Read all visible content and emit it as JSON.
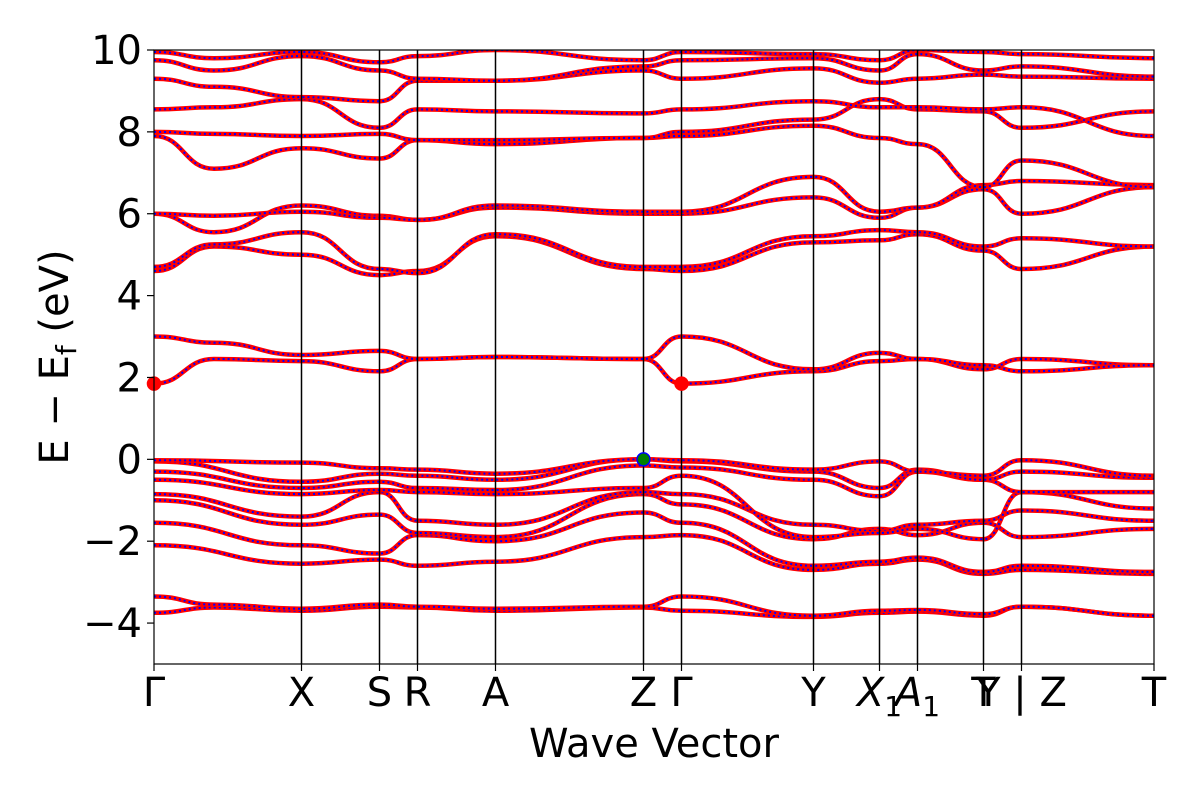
{
  "chart_data": {
    "type": "line",
    "title": "",
    "xlabel": "Wave Vector",
    "ylabel": {
      "main": "E − E",
      "sub": "f",
      "unit": " (eV)"
    },
    "ylim": [
      -5,
      10
    ],
    "yticks": [
      {
        "value": -4,
        "label": "−4"
      },
      {
        "value": -2,
        "label": "−2"
      },
      {
        "value": 0,
        "label": "0"
      },
      {
        "value": 2,
        "label": "2"
      },
      {
        "value": 4,
        "label": "4"
      },
      {
        "value": 6,
        "label": "6"
      },
      {
        "value": 8,
        "label": "8"
      },
      {
        "value": 10,
        "label": "10"
      }
    ],
    "grid": false,
    "legend": "none",
    "kpoint_breaks": [
      0,
      0.1475,
      0.2255,
      0.2635,
      0.3415,
      0.4895,
      0.5275,
      0.6595,
      0.7255,
      0.7635,
      0.8295,
      0.8675,
      1.0
    ],
    "xticks": [
      {
        "pos": 0,
        "label": "Γ",
        "sub": ""
      },
      {
        "pos": 0.1475,
        "label": "X",
        "sub": ""
      },
      {
        "pos": 0.2255,
        "label": "S",
        "sub": ""
      },
      {
        "pos": 0.2635,
        "label": "R",
        "sub": ""
      },
      {
        "pos": 0.3415,
        "label": "A",
        "sub": ""
      },
      {
        "pos": 0.4895,
        "label": "Z",
        "sub": ""
      },
      {
        "pos": 0.5275,
        "label": "Γ",
        "sub": ""
      },
      {
        "pos": 0.6595,
        "label": "Y",
        "sub": ""
      },
      {
        "pos": 0.7255,
        "label": "X",
        "sub": "1",
        "italic": true
      },
      {
        "pos": 0.7635,
        "label": "A",
        "sub": "1",
        "italic": true
      },
      {
        "pos": 0.8295,
        "label": "T",
        "sub": ""
      },
      {
        "pos": 0.8675,
        "label": "Y | Z",
        "sub": ""
      },
      {
        "pos": 1.0,
        "label": "T",
        "sub": ""
      }
    ],
    "colors": {
      "spin_up": "#ff0000",
      "spin_down": "#0000ff",
      "vbm": "#008000",
      "cbm": "#ff0000"
    },
    "bands": [
      {
        "name": "",
        "x": [
          0,
          0.06,
          0.1475,
          0.2255,
          0.2635,
          0.3415,
          0.4895,
          0.5275,
          0.6595,
          0.7255,
          0.7635,
          0.8295,
          0.8675,
          1.0
        ],
        "y": [
          -3.75,
          -3.62,
          -3.7,
          -3.6,
          -3.62,
          -3.7,
          -3.62,
          -3.7,
          -3.85,
          -3.75,
          -3.72,
          -3.82,
          -3.6,
          -3.82
        ]
      },
      {
        "name": "",
        "x": [
          0,
          0.06,
          0.1475,
          0.2255,
          0.2635,
          0.3415,
          0.4895,
          0.5275,
          0.6595,
          0.7255,
          0.7635,
          0.8295,
          0.8675,
          1.0
        ],
        "y": [
          -3.35,
          -3.55,
          -3.65,
          -3.55,
          -3.6,
          -3.65,
          -3.6,
          -3.35,
          -3.82,
          -3.7,
          -3.68,
          -3.78,
          -3.6,
          -3.82
        ]
      },
      {
        "name": "",
        "x": [
          0,
          0.1475,
          0.2255,
          0.2635,
          0.3415,
          0.4895,
          0.5275,
          0.6595,
          0.7255,
          0.7635,
          0.8295,
          0.8675,
          1.0
        ],
        "y": [
          -2.1,
          -2.55,
          -2.45,
          -2.6,
          -2.5,
          -1.9,
          -1.85,
          -2.7,
          -2.55,
          -2.45,
          -2.8,
          -2.7,
          -2.8
        ]
      },
      {
        "name": "",
        "x": [
          0,
          0.1475,
          0.2255,
          0.2635,
          0.3415,
          0.4895,
          0.5275,
          0.6595,
          0.7255,
          0.7635,
          0.8295,
          0.8675,
          1.0
        ],
        "y": [
          -1.55,
          -2.1,
          -2.3,
          -1.85,
          -2.0,
          -1.3,
          -1.55,
          -2.6,
          -2.5,
          -2.4,
          -2.75,
          -2.6,
          -2.75
        ]
      },
      {
        "name": "",
        "x": [
          0,
          0.1475,
          0.2255,
          0.2635,
          0.3415,
          0.4895,
          0.5275,
          0.6595,
          0.7255,
          0.7635,
          0.8295,
          0.8675,
          1.0
        ],
        "y": [
          -1.0,
          -1.6,
          -1.35,
          -1.8,
          -1.9,
          -0.85,
          -1.1,
          -1.95,
          -1.7,
          -1.85,
          -1.55,
          -1.9,
          -1.7
        ]
      },
      {
        "name": "",
        "x": [
          0,
          0.1475,
          0.2255,
          0.2635,
          0.3415,
          0.4895,
          0.5275,
          0.6595,
          0.7255,
          0.7635,
          0.8295,
          0.8675,
          1.0
        ],
        "y": [
          -0.85,
          -1.4,
          -0.8,
          -1.5,
          -1.6,
          -0.8,
          -0.85,
          -1.6,
          -1.75,
          -1.6,
          -1.5,
          -1.25,
          -1.5
        ]
      },
      {
        "name": "",
        "x": [
          0,
          0.1475,
          0.2255,
          0.2635,
          0.3415,
          0.4895,
          0.5275,
          0.6595,
          0.7255,
          0.7635,
          0.8295,
          0.8675,
          1.0
        ],
        "y": [
          -0.5,
          -0.85,
          -0.75,
          -0.8,
          -0.85,
          -0.7,
          -0.4,
          -1.9,
          -1.8,
          -1.7,
          -1.95,
          -0.8,
          -1.2
        ]
      },
      {
        "name": "",
        "x": [
          0,
          0.1475,
          0.2255,
          0.2635,
          0.3415,
          0.4895,
          0.5275,
          0.6595,
          0.7255,
          0.7635,
          0.8295,
          0.8675,
          1.0
        ],
        "y": [
          -0.3,
          -0.7,
          -0.55,
          -0.7,
          -0.75,
          -0.15,
          -0.2,
          -0.5,
          -0.9,
          -0.3,
          -0.5,
          -0.8,
          -0.8
        ]
      },
      {
        "name": "",
        "x": [
          0,
          0.1475,
          0.2255,
          0.2635,
          0.3415,
          0.4895,
          0.5275,
          0.6595,
          0.7255,
          0.7635,
          0.8295,
          0.8675,
          1.0
        ],
        "y": [
          -0.05,
          -0.55,
          -0.35,
          -0.4,
          -0.5,
          0.0,
          -0.05,
          -0.3,
          -0.7,
          -0.25,
          -0.5,
          -0.3,
          -0.45
        ]
      },
      {
        "name": "",
        "x": [
          0,
          0.1475,
          0.2255,
          0.2635,
          0.3415,
          0.4895,
          0.5275,
          0.6595,
          0.7255,
          0.7635,
          0.8295,
          0.8675,
          1.0
        ],
        "y": [
          -0.02,
          -0.08,
          -0.22,
          -0.25,
          -0.35,
          0.0,
          -0.02,
          -0.25,
          -0.05,
          -0.3,
          -0.4,
          -0.02,
          -0.4
        ]
      },
      {
        "name": "",
        "x": [
          0,
          0.06,
          0.1475,
          0.2255,
          0.2635,
          0.3415,
          0.4895,
          0.5275,
          0.6595,
          0.7255,
          0.7635,
          0.8295,
          0.8675,
          1.0
        ],
        "y": [
          1.85,
          2.45,
          2.4,
          2.15,
          2.45,
          2.5,
          2.45,
          1.85,
          2.15,
          2.4,
          2.45,
          2.2,
          2.45,
          2.3
        ]
      },
      {
        "name": "",
        "x": [
          0,
          0.06,
          0.1475,
          0.2255,
          0.2635,
          0.3415,
          0.4895,
          0.5275,
          0.6595,
          0.7255,
          0.7635,
          0.8295,
          0.8675,
          1.0
        ],
        "y": [
          3.0,
          2.85,
          2.55,
          2.65,
          2.45,
          2.5,
          2.45,
          3.0,
          2.2,
          2.6,
          2.45,
          2.3,
          2.15,
          2.3
        ]
      },
      {
        "name": "",
        "x": [
          0,
          0.06,
          0.1475,
          0.2255,
          0.2635,
          0.3415,
          0.4895,
          0.5275,
          0.6595,
          0.7255,
          0.7635,
          0.8295,
          0.8675,
          1.0
        ],
        "y": [
          4.6,
          5.2,
          5.0,
          4.5,
          4.6,
          5.45,
          4.65,
          4.6,
          5.3,
          5.35,
          5.5,
          5.1,
          4.65,
          5.2
        ]
      },
      {
        "name": "",
        "x": [
          0,
          0.06,
          0.1475,
          0.2255,
          0.2635,
          0.3415,
          0.4895,
          0.5275,
          0.6595,
          0.7255,
          0.7635,
          0.8295,
          0.8675,
          1.0
        ],
        "y": [
          4.7,
          5.25,
          5.55,
          4.65,
          4.55,
          5.5,
          4.7,
          4.7,
          5.45,
          5.6,
          5.55,
          5.2,
          5.4,
          5.2
        ]
      },
      {
        "name": "",
        "x": [
          0,
          0.06,
          0.1475,
          0.2255,
          0.2635,
          0.3415,
          0.4895,
          0.5275,
          0.6595,
          0.7255,
          0.7635,
          0.8295,
          0.8675,
          1.0
        ],
        "y": [
          6.0,
          5.55,
          6.2,
          5.95,
          5.85,
          6.15,
          6.0,
          6.0,
          6.4,
          5.9,
          6.15,
          6.6,
          6.0,
          6.65
        ]
      },
      {
        "name": "",
        "x": [
          0,
          0.06,
          0.1475,
          0.2255,
          0.2635,
          0.3415,
          0.4895,
          0.5275,
          0.6595,
          0.7255,
          0.7635,
          0.8295,
          0.8675,
          1.0
        ],
        "y": [
          6.0,
          5.95,
          6.05,
          5.9,
          5.85,
          6.2,
          6.05,
          6.05,
          6.9,
          6.05,
          6.15,
          6.7,
          6.8,
          6.7
        ]
      },
      {
        "name": "",
        "x": [
          0,
          0.06,
          0.1475,
          0.2255,
          0.2635,
          0.3415,
          0.4895,
          0.5275,
          0.6595,
          0.7255,
          0.7635,
          0.8295,
          0.8675,
          1.0
        ],
        "y": [
          7.9,
          7.1,
          7.6,
          7.35,
          7.8,
          7.7,
          7.85,
          7.9,
          8.15,
          7.85,
          7.7,
          6.65,
          7.3,
          6.65
        ]
      },
      {
        "name": "",
        "x": [
          0,
          0.06,
          0.1475,
          0.2255,
          0.2635,
          0.3415,
          0.4895,
          0.5275,
          0.6595,
          0.7255,
          0.7635,
          0.8295,
          0.8675,
          1.0
        ],
        "y": [
          8.0,
          7.95,
          7.9,
          7.95,
          7.8,
          7.8,
          7.85,
          8.0,
          8.3,
          8.8,
          8.55,
          8.5,
          8.1,
          8.5
        ]
      },
      {
        "name": "",
        "x": [
          0,
          0.06,
          0.1475,
          0.2255,
          0.2635,
          0.3415,
          0.4895,
          0.5275,
          0.6595,
          0.7255,
          0.7635,
          0.8295,
          0.8675,
          1.0
        ],
        "y": [
          8.55,
          8.6,
          8.8,
          8.1,
          8.55,
          8.5,
          8.45,
          8.55,
          8.75,
          8.6,
          8.6,
          8.55,
          8.6,
          7.9
        ]
      },
      {
        "name": "",
        "x": [
          0,
          0.06,
          0.1475,
          0.2255,
          0.2635,
          0.3415,
          0.4895,
          0.5275,
          0.6595,
          0.7255,
          0.7635,
          0.8295,
          0.8675,
          1.0
        ],
        "y": [
          9.3,
          9.1,
          8.85,
          8.75,
          9.25,
          9.25,
          9.5,
          9.3,
          9.55,
          9.2,
          9.3,
          9.4,
          9.35,
          9.3
        ]
      },
      {
        "name": "",
        "x": [
          0,
          0.06,
          0.1475,
          0.2255,
          0.2635,
          0.3415,
          0.4895,
          0.5275,
          0.6595,
          0.7255,
          0.7635,
          0.8295,
          0.8675,
          1.0
        ],
        "y": [
          9.75,
          9.5,
          9.85,
          9.5,
          9.3,
          9.25,
          9.6,
          9.75,
          9.8,
          9.5,
          9.9,
          9.5,
          9.6,
          9.35
        ]
      },
      {
        "name": "",
        "x": [
          0,
          0.06,
          0.1475,
          0.2255,
          0.2635,
          0.3415,
          0.4895,
          0.5275,
          0.6595,
          0.7255,
          0.7635,
          0.8295,
          0.8675,
          1.0
        ],
        "y": [
          9.95,
          9.8,
          9.95,
          9.7,
          9.85,
          10.0,
          9.75,
          9.95,
          9.9,
          9.75,
          10.0,
          9.95,
          9.9,
          9.8
        ]
      }
    ],
    "markers": [
      {
        "name": "vbm",
        "x": 0.4895,
        "y": 0.0,
        "color": "#008000",
        "edge": "#0000ff"
      },
      {
        "name": "cbm",
        "x": 0.5275,
        "y": 1.85,
        "color": "#ff0000",
        "edge": "#ff0000"
      },
      {
        "name": "cbm-edge",
        "x": 0.0,
        "y": 1.85,
        "color": "#ff0000",
        "edge": "#ff0000"
      }
    ]
  }
}
